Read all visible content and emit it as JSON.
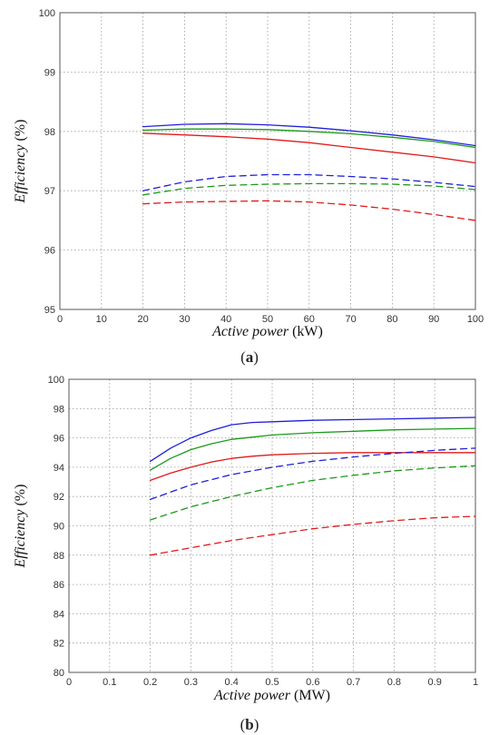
{
  "chart_data": [
    {
      "type": "line",
      "caption_letter": "a",
      "xlabel_main": "Active power",
      "xlabel_unit": " (kW)",
      "ylabel_main": "Efficiency",
      "ylabel_unit": " (%)",
      "xlim": [
        0,
        100
      ],
      "ylim": [
        95,
        100
      ],
      "xticks": [
        0,
        10,
        20,
        30,
        40,
        50,
        60,
        70,
        80,
        90,
        100
      ],
      "yticks": [
        95,
        96,
        97,
        98,
        99,
        100
      ],
      "grid": true,
      "series": [
        {
          "color": "#1f1fdc",
          "dash": false,
          "x": [
            20,
            30,
            40,
            50,
            60,
            70,
            80,
            90,
            100
          ],
          "y": [
            98.08,
            98.12,
            98.13,
            98.11,
            98.07,
            98.01,
            97.94,
            97.86,
            97.76
          ]
        },
        {
          "color": "#1a9a1a",
          "dash": false,
          "x": [
            20,
            30,
            40,
            50,
            60,
            70,
            80,
            90,
            100
          ],
          "y": [
            98.02,
            98.04,
            98.04,
            98.03,
            98.0,
            97.96,
            97.9,
            97.83,
            97.73
          ]
        },
        {
          "color": "#e01b1b",
          "dash": false,
          "x": [
            20,
            30,
            40,
            50,
            60,
            70,
            80,
            90,
            100
          ],
          "y": [
            97.97,
            97.94,
            97.91,
            97.87,
            97.81,
            97.73,
            97.65,
            97.57,
            97.47
          ]
        },
        {
          "color": "#1f1fdc",
          "dash": true,
          "x": [
            20,
            30,
            40,
            50,
            60,
            70,
            80,
            90,
            100
          ],
          "y": [
            97.0,
            97.15,
            97.24,
            97.27,
            97.27,
            97.24,
            97.2,
            97.14,
            97.07
          ]
        },
        {
          "color": "#1a9a1a",
          "dash": true,
          "x": [
            20,
            30,
            40,
            50,
            60,
            70,
            80,
            90,
            100
          ],
          "y": [
            96.93,
            97.04,
            97.09,
            97.11,
            97.12,
            97.12,
            97.11,
            97.08,
            97.02
          ]
        },
        {
          "color": "#e01b1b",
          "dash": true,
          "x": [
            20,
            30,
            40,
            50,
            60,
            70,
            80,
            90,
            100
          ],
          "y": [
            96.78,
            96.81,
            96.82,
            96.83,
            96.81,
            96.76,
            96.69,
            96.6,
            96.5
          ]
        }
      ]
    },
    {
      "type": "line",
      "caption_letter": "b",
      "xlabel_main": "Active power",
      "xlabel_unit": " (MW)",
      "ylabel_main": "Efficiency",
      "ylabel_unit": " (%)",
      "xlim": [
        0,
        1
      ],
      "ylim": [
        80,
        100
      ],
      "xticks": [
        0,
        0.1,
        0.2,
        0.3,
        0.4,
        0.5,
        0.6,
        0.7,
        0.8,
        0.9,
        1
      ],
      "yticks": [
        80,
        82,
        84,
        86,
        88,
        90,
        92,
        94,
        96,
        98,
        100
      ],
      "grid": true,
      "series": [
        {
          "color": "#1f1fdc",
          "dash": false,
          "x": [
            0.2,
            0.25,
            0.3,
            0.35,
            0.4,
            0.45,
            0.5,
            0.6,
            0.7,
            0.8,
            0.9,
            1.0
          ],
          "y": [
            94.4,
            95.3,
            96.0,
            96.5,
            96.9,
            97.05,
            97.1,
            97.2,
            97.25,
            97.3,
            97.35,
            97.4
          ]
        },
        {
          "color": "#1a9a1a",
          "dash": false,
          "x": [
            0.2,
            0.25,
            0.3,
            0.35,
            0.4,
            0.45,
            0.5,
            0.6,
            0.7,
            0.8,
            0.9,
            1.0
          ],
          "y": [
            93.8,
            94.6,
            95.2,
            95.6,
            95.9,
            96.05,
            96.2,
            96.35,
            96.45,
            96.55,
            96.6,
            96.65
          ]
        },
        {
          "color": "#e01b1b",
          "dash": false,
          "x": [
            0.2,
            0.25,
            0.3,
            0.35,
            0.4,
            0.45,
            0.5,
            0.6,
            0.7,
            0.8,
            0.9,
            1.0
          ],
          "y": [
            93.1,
            93.6,
            94.0,
            94.35,
            94.6,
            94.75,
            94.85,
            94.95,
            95.0,
            95.0,
            95.0,
            95.0
          ]
        },
        {
          "color": "#1f1fdc",
          "dash": true,
          "x": [
            0.2,
            0.3,
            0.4,
            0.5,
            0.6,
            0.7,
            0.8,
            0.9,
            1.0
          ],
          "y": [
            91.8,
            92.8,
            93.5,
            94.0,
            94.4,
            94.7,
            94.95,
            95.15,
            95.3
          ]
        },
        {
          "color": "#1a9a1a",
          "dash": true,
          "x": [
            0.2,
            0.3,
            0.4,
            0.5,
            0.6,
            0.7,
            0.8,
            0.9,
            1.0
          ],
          "y": [
            90.4,
            91.3,
            92.0,
            92.6,
            93.1,
            93.45,
            93.75,
            93.95,
            94.1
          ]
        },
        {
          "color": "#e01b1b",
          "dash": true,
          "x": [
            0.2,
            0.3,
            0.4,
            0.5,
            0.6,
            0.7,
            0.8,
            0.9,
            1.0
          ],
          "y": [
            88.0,
            88.5,
            89.0,
            89.4,
            89.8,
            90.1,
            90.35,
            90.55,
            90.65
          ]
        }
      ]
    }
  ]
}
